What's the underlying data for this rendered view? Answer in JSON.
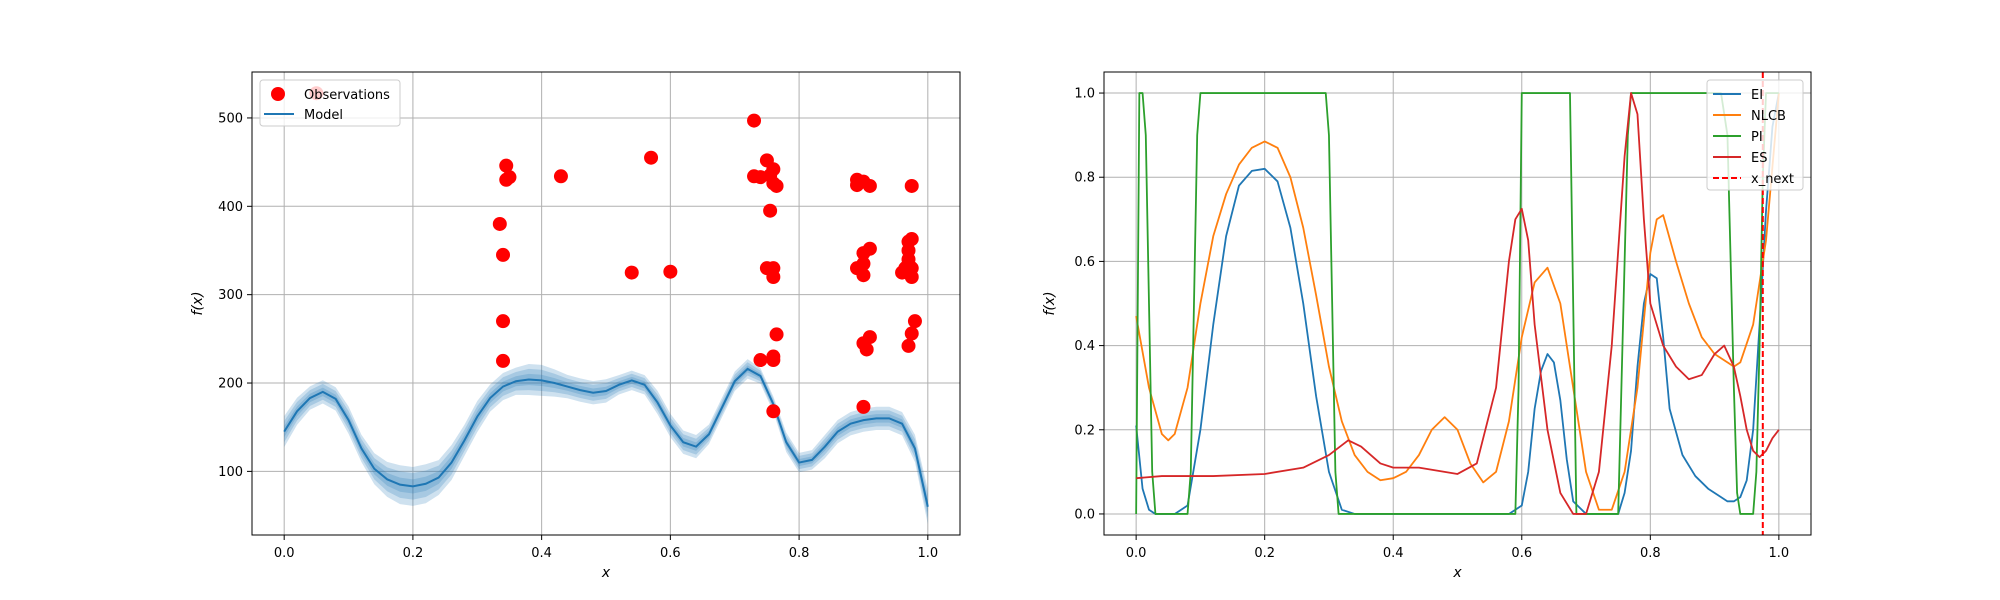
{
  "colors": {
    "observations": "#ff0000",
    "model": "#1f77b4",
    "EI": "#1f77b4",
    "NLCB": "#ff7f0e",
    "PI": "#2ca02c",
    "ES": "#d62728",
    "x_next": "#ff0000",
    "grid": "#b0b0b0"
  },
  "chart_data": [
    {
      "type": "scatter",
      "xlabel": "x",
      "ylabel": "f(x)",
      "xlim": [
        -0.05,
        1.05
      ],
      "ylim": [
        28,
        552
      ],
      "xticks": [
        0.0,
        0.2,
        0.4,
        0.6,
        0.8,
        1.0
      ],
      "xtick_labels": [
        "0.0",
        "0.2",
        "0.4",
        "0.6",
        "0.8",
        "1.0"
      ],
      "yticks": [
        100,
        200,
        300,
        400,
        500
      ],
      "ytick_labels": [
        "100",
        "200",
        "300",
        "400",
        "500"
      ],
      "grid": true,
      "legend": {
        "placement": "upper-left",
        "entries": [
          "Observations",
          "Model"
        ]
      },
      "series": [
        {
          "name": "Observations",
          "kind": "scatter",
          "points": [
            [
              0.05,
              528
            ],
            [
              0.335,
              380
            ],
            [
              0.34,
              345
            ],
            [
              0.34,
              270
            ],
            [
              0.34,
              225
            ],
            [
              0.345,
              446
            ],
            [
              0.345,
              430
            ],
            [
              0.35,
              433
            ],
            [
              0.43,
              434
            ],
            [
              0.54,
              325
            ],
            [
              0.57,
              455
            ],
            [
              0.6,
              326
            ],
            [
              0.73,
              497
            ],
            [
              0.73,
              434
            ],
            [
              0.74,
              226
            ],
            [
              0.74,
              433
            ],
            [
              0.75,
              452
            ],
            [
              0.75,
              330
            ],
            [
              0.755,
              395
            ],
            [
              0.755,
              435
            ],
            [
              0.76,
              442
            ],
            [
              0.76,
              426
            ],
            [
              0.76,
              330
            ],
            [
              0.76,
              320
            ],
            [
              0.76,
              230
            ],
            [
              0.76,
              226
            ],
            [
              0.765,
              423
            ],
            [
              0.765,
              255
            ],
            [
              0.76,
              168
            ],
            [
              0.89,
              430
            ],
            [
              0.89,
              424
            ],
            [
              0.89,
              330
            ],
            [
              0.9,
              428
            ],
            [
              0.9,
              347
            ],
            [
              0.9,
              335
            ],
            [
              0.9,
              322
            ],
            [
              0.9,
              245
            ],
            [
              0.905,
              238
            ],
            [
              0.9,
              173
            ],
            [
              0.91,
              423
            ],
            [
              0.91,
              252
            ],
            [
              0.91,
              352
            ],
            [
              0.96,
              325
            ],
            [
              0.965,
              330
            ],
            [
              0.97,
              360
            ],
            [
              0.97,
              350
            ],
            [
              0.97,
              340
            ],
            [
              0.97,
              242
            ],
            [
              0.975,
              423
            ],
            [
              0.975,
              363
            ],
            [
              0.975,
              330
            ],
            [
              0.975,
              320
            ],
            [
              0.975,
              256
            ],
            [
              0.98,
              270
            ]
          ]
        },
        {
          "name": "Model",
          "kind": "line",
          "x": [
            0.0,
            0.02,
            0.04,
            0.06,
            0.08,
            0.1,
            0.12,
            0.14,
            0.16,
            0.18,
            0.2,
            0.22,
            0.24,
            0.26,
            0.28,
            0.3,
            0.32,
            0.34,
            0.36,
            0.38,
            0.4,
            0.42,
            0.44,
            0.46,
            0.48,
            0.5,
            0.52,
            0.54,
            0.56,
            0.58,
            0.6,
            0.62,
            0.64,
            0.66,
            0.68,
            0.7,
            0.72,
            0.74,
            0.76,
            0.78,
            0.8,
            0.82,
            0.84,
            0.86,
            0.88,
            0.9,
            0.92,
            0.94,
            0.96,
            0.98,
            1.0
          ],
          "mean": [
            145,
            168,
            183,
            190,
            182,
            158,
            126,
            103,
            91,
            85,
            83,
            86,
            93,
            110,
            135,
            162,
            183,
            196,
            202,
            204,
            203,
            200,
            196,
            192,
            189,
            191,
            198,
            203,
            198,
            178,
            152,
            133,
            128,
            142,
            172,
            202,
            216,
            208,
            176,
            133,
            110,
            113,
            128,
            145,
            154,
            158,
            160,
            160,
            154,
            126,
            60
          ],
          "band_std": [
            8,
            7,
            6,
            6,
            6,
            7,
            7,
            8,
            9,
            10,
            10,
            10,
            9,
            9,
            8,
            8,
            7,
            7,
            7,
            8,
            8,
            7,
            6,
            6,
            6,
            6,
            5,
            5,
            5,
            6,
            6,
            6,
            6,
            5,
            5,
            5,
            5,
            4,
            4,
            5,
            5,
            5,
            6,
            6,
            6,
            6,
            6,
            6,
            6,
            7,
            9
          ]
        }
      ]
    },
    {
      "type": "line",
      "xlabel": "x",
      "ylabel": "f(x)",
      "xlim": [
        -0.05,
        1.05
      ],
      "ylim": [
        -0.05,
        1.05
      ],
      "xticks": [
        0.0,
        0.2,
        0.4,
        0.6,
        0.8,
        1.0
      ],
      "xtick_labels": [
        "0.0",
        "0.2",
        "0.4",
        "0.6",
        "0.8",
        "1.0"
      ],
      "yticks": [
        0.0,
        0.2,
        0.4,
        0.6,
        0.8,
        1.0
      ],
      "ytick_labels": [
        "0.0",
        "0.2",
        "0.4",
        "0.6",
        "0.8",
        "1.0"
      ],
      "grid": true,
      "legend": {
        "placement": "upper-right",
        "entries": [
          "EI",
          "NLCB",
          "PI",
          "ES",
          "x_next"
        ]
      },
      "x_next": 0.975,
      "series": [
        {
          "name": "EI",
          "x": [
            0.0,
            0.01,
            0.02,
            0.03,
            0.04,
            0.05,
            0.06,
            0.08,
            0.1,
            0.12,
            0.14,
            0.16,
            0.18,
            0.2,
            0.22,
            0.24,
            0.26,
            0.28,
            0.3,
            0.32,
            0.34,
            0.4,
            0.5,
            0.58,
            0.6,
            0.61,
            0.62,
            0.63,
            0.64,
            0.65,
            0.66,
            0.67,
            0.68,
            0.7,
            0.75,
            0.76,
            0.77,
            0.78,
            0.79,
            0.8,
            0.81,
            0.82,
            0.83,
            0.85,
            0.87,
            0.89,
            0.91,
            0.92,
            0.93,
            0.94,
            0.95,
            0.96,
            0.97,
            0.98,
            0.99,
            1.0
          ],
          "values": [
            0.21,
            0.06,
            0.01,
            0.0,
            0.0,
            0.0,
            0.0,
            0.02,
            0.2,
            0.45,
            0.66,
            0.78,
            0.815,
            0.82,
            0.79,
            0.68,
            0.5,
            0.28,
            0.1,
            0.01,
            0.0,
            0.0,
            0.0,
            0.0,
            0.02,
            0.1,
            0.25,
            0.34,
            0.38,
            0.36,
            0.27,
            0.13,
            0.03,
            0.0,
            0.0,
            0.05,
            0.15,
            0.35,
            0.5,
            0.57,
            0.56,
            0.42,
            0.25,
            0.14,
            0.09,
            0.06,
            0.04,
            0.03,
            0.03,
            0.04,
            0.08,
            0.2,
            0.45,
            0.72,
            0.92,
            1.0
          ]
        },
        {
          "name": "NLCB",
          "x": [
            0.0,
            0.02,
            0.04,
            0.05,
            0.06,
            0.08,
            0.1,
            0.12,
            0.14,
            0.16,
            0.18,
            0.2,
            0.22,
            0.24,
            0.26,
            0.28,
            0.3,
            0.32,
            0.34,
            0.36,
            0.38,
            0.4,
            0.42,
            0.44,
            0.46,
            0.48,
            0.5,
            0.52,
            0.54,
            0.56,
            0.58,
            0.6,
            0.62,
            0.64,
            0.66,
            0.68,
            0.7,
            0.72,
            0.74,
            0.76,
            0.78,
            0.8,
            0.81,
            0.82,
            0.84,
            0.86,
            0.88,
            0.9,
            0.92,
            0.93,
            0.94,
            0.96,
            0.98,
            1.0
          ],
          "values": [
            0.47,
            0.3,
            0.19,
            0.175,
            0.19,
            0.3,
            0.5,
            0.66,
            0.76,
            0.83,
            0.87,
            0.885,
            0.87,
            0.8,
            0.68,
            0.52,
            0.35,
            0.22,
            0.14,
            0.1,
            0.08,
            0.085,
            0.1,
            0.14,
            0.2,
            0.23,
            0.2,
            0.12,
            0.075,
            0.1,
            0.22,
            0.42,
            0.55,
            0.585,
            0.5,
            0.3,
            0.1,
            0.01,
            0.01,
            0.1,
            0.3,
            0.62,
            0.7,
            0.71,
            0.6,
            0.5,
            0.42,
            0.38,
            0.36,
            0.35,
            0.36,
            0.45,
            0.65,
            1.0
          ]
        },
        {
          "name": "PI",
          "x": [
            0.0,
            0.005,
            0.01,
            0.015,
            0.02,
            0.025,
            0.03,
            0.08,
            0.085,
            0.09,
            0.095,
            0.1,
            0.105,
            0.29,
            0.295,
            0.3,
            0.305,
            0.31,
            0.315,
            0.59,
            0.595,
            0.6,
            0.605,
            0.67,
            0.675,
            0.68,
            0.685,
            0.75,
            0.755,
            0.76,
            0.765,
            0.77,
            0.775,
            0.9,
            0.91,
            0.92,
            0.925,
            0.93,
            0.935,
            0.94,
            0.945,
            0.95,
            0.955,
            0.96,
            0.965,
            0.97,
            0.975,
            0.98,
            0.99,
            1.0
          ],
          "values": [
            0.0,
            1.0,
            1.0,
            0.9,
            0.5,
            0.1,
            0.0,
            0.0,
            0.1,
            0.5,
            0.9,
            1.0,
            1.0,
            1.0,
            1.0,
            0.9,
            0.5,
            0.1,
            0.0,
            0.0,
            0.3,
            1.0,
            1.0,
            1.0,
            1.0,
            0.5,
            0.0,
            0.0,
            0.3,
            0.6,
            0.9,
            1.0,
            1.0,
            1.0,
            1.0,
            0.9,
            0.6,
            0.3,
            0.05,
            0.0,
            0.0,
            0.0,
            0.0,
            0.0,
            0.1,
            0.4,
            0.8,
            1.0,
            1.0,
            1.0
          ]
        },
        {
          "name": "ES",
          "x": [
            0.0,
            0.04,
            0.08,
            0.12,
            0.2,
            0.26,
            0.3,
            0.33,
            0.35,
            0.38,
            0.4,
            0.44,
            0.48,
            0.5,
            0.53,
            0.56,
            0.58,
            0.59,
            0.6,
            0.61,
            0.62,
            0.64,
            0.66,
            0.68,
            0.7,
            0.72,
            0.74,
            0.76,
            0.77,
            0.78,
            0.79,
            0.8,
            0.82,
            0.84,
            0.86,
            0.88,
            0.9,
            0.915,
            0.93,
            0.94,
            0.95,
            0.96,
            0.97,
            0.98,
            0.99,
            1.0
          ],
          "values": [
            0.085,
            0.09,
            0.09,
            0.09,
            0.095,
            0.11,
            0.14,
            0.175,
            0.16,
            0.12,
            0.11,
            0.11,
            0.1,
            0.095,
            0.12,
            0.3,
            0.6,
            0.7,
            0.725,
            0.65,
            0.45,
            0.2,
            0.05,
            0.0,
            0.0,
            0.1,
            0.4,
            0.85,
            1.0,
            0.95,
            0.7,
            0.5,
            0.4,
            0.35,
            0.32,
            0.33,
            0.38,
            0.4,
            0.35,
            0.28,
            0.2,
            0.15,
            0.135,
            0.15,
            0.18,
            0.2
          ]
        }
      ]
    }
  ]
}
